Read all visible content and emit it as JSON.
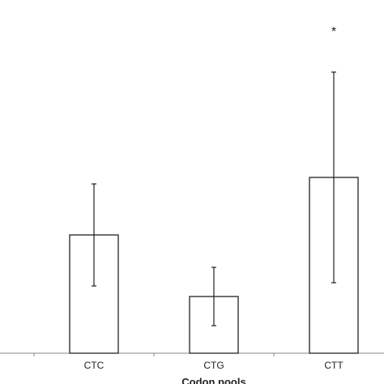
{
  "chart_data": {
    "type": "bar",
    "x_label": "Codon pools",
    "categories": [
      "CTC",
      "CTG",
      "CTT"
    ],
    "values": [
      146,
      70,
      217
    ],
    "errors": [
      63,
      36,
      130
    ],
    "color": "#ffffff",
    "ylim": [
      0,
      436
    ],
    "annotations": [
      {
        "text": "*",
        "category": 2
      }
    ]
  }
}
